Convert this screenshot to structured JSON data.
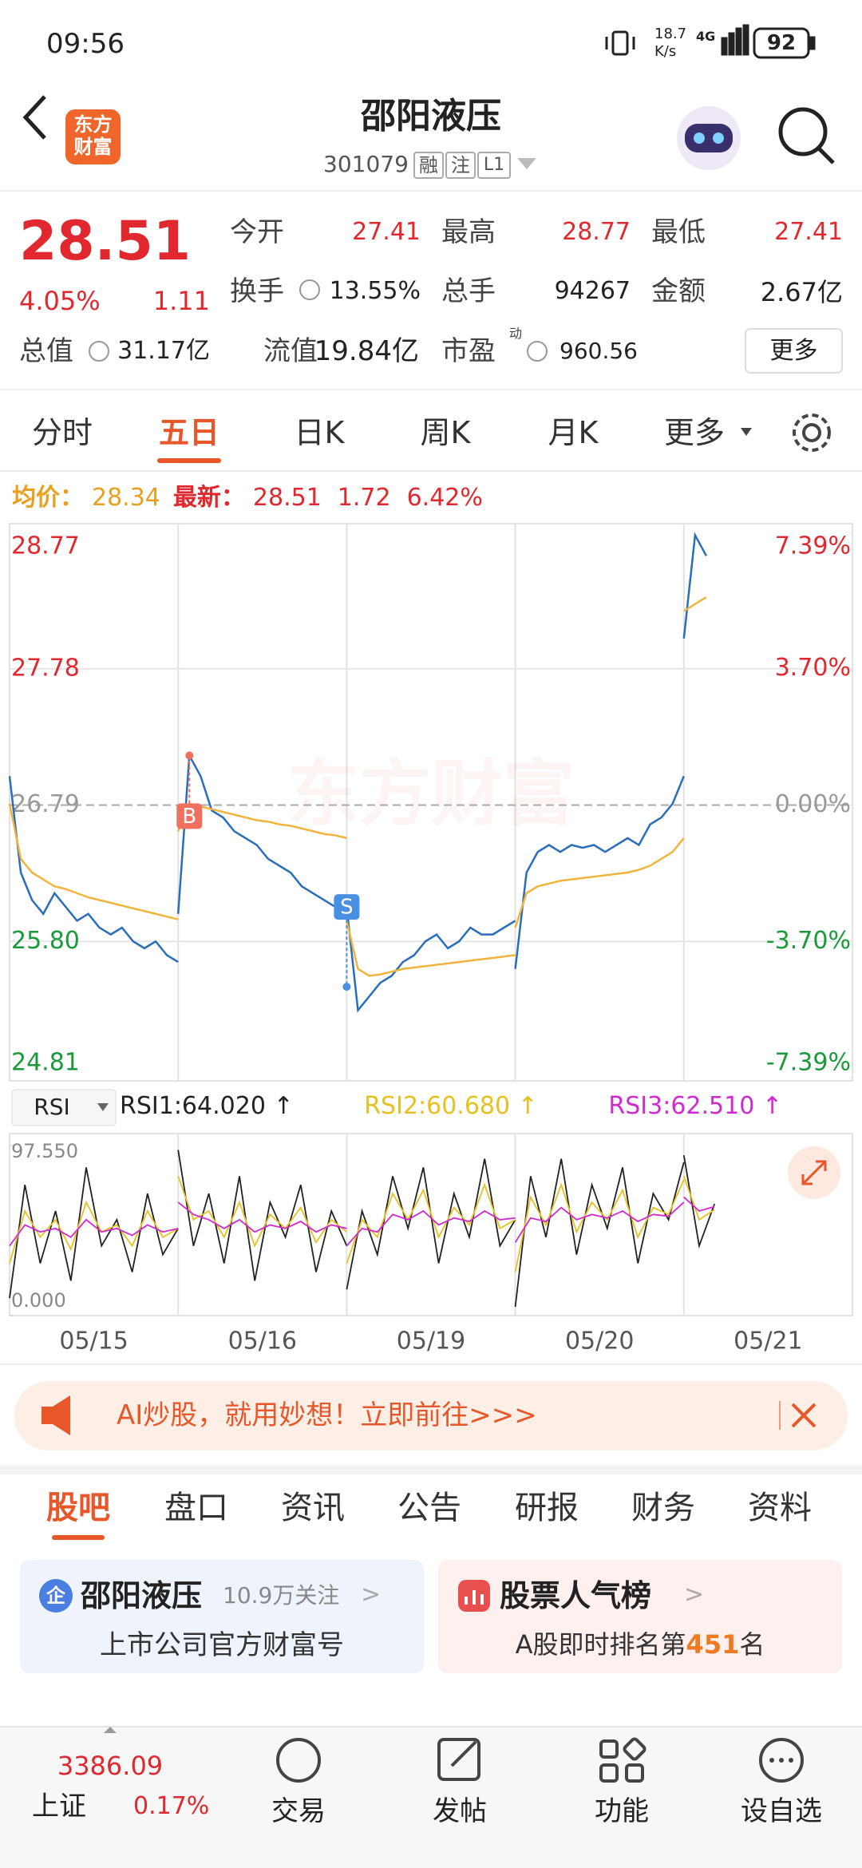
{
  "status_bar": {
    "time": "09:56",
    "speed": "18.7",
    "speed_unit": "K/s",
    "network": "4G",
    "battery": "92"
  },
  "header": {
    "logo": [
      "东方",
      "财富"
    ],
    "title": "邵阳液压",
    "code": "301079",
    "tags": [
      "融",
      "注",
      "L1"
    ]
  },
  "quote": {
    "price": "28.51",
    "change_pct": "4.05%",
    "change": "1.11",
    "market_cap_label": "总值",
    "market_cap": "31.17亿",
    "stats": [
      [
        "今开",
        "27.41"
      ],
      [
        "最高",
        "28.77"
      ],
      [
        "最低",
        "27.41"
      ],
      [
        "换手",
        "13.55%"
      ],
      [
        "总手",
        "94267"
      ],
      [
        "金额",
        "2.67亿"
      ],
      [
        "流值",
        "19.84亿"
      ],
      [
        "市盈",
        "960.56"
      ]
    ],
    "pe_sup": "动",
    "more": "更多"
  },
  "tabs": [
    "分时",
    "五日",
    "日K",
    "周K",
    "月K",
    "更多"
  ],
  "info": {
    "avg_label": "均价：",
    "avg": "28.34",
    "last_label": "最新：",
    "last": "28.51",
    "change": "1.72",
    "change_pct": "6.42%"
  },
  "chart_data": [
    {
      "type": "line",
      "watermark": "东方财富",
      "categories": [
        "05/15",
        "05/16",
        "05/19",
        "05/20",
        "05/21"
      ],
      "ylim": [
        24.81,
        28.77
      ],
      "yticks": [
        28.77,
        27.78,
        26.79,
        {
          "value": 25.8,
          "label": "25.80"
        },
        24.81
      ],
      "y2lim": [
        -7.39,
        7.39
      ],
      "y2ticks": [
        {
          "value": 7.39,
          "label": "7.39%"
        },
        {
          "value": 3.7,
          "label": "3.70%"
        },
        {
          "value": 0,
          "label": "0.00%"
        },
        {
          "value": -3.7,
          "label": "-3.70%"
        },
        {
          "value": -7.39,
          "label": "-7.39%"
        }
      ],
      "up_color": "#e0282e",
      "down_color": "#1a9a3a",
      "flat_color": "#999999",
      "series": [
        {
          "color": "#2a6ebb",
          "values": [
            [
              27.0,
              26.3,
              26.1,
              26.0,
              26.15,
              26.05,
              25.95,
              26.0,
              25.9,
              25.85,
              25.9,
              25.8,
              25.75,
              25.8,
              25.7,
              25.65
            ],
            [
              26.0,
              27.15,
              27.0,
              26.75,
              26.7,
              26.6,
              26.55,
              26.5,
              26.4,
              26.35,
              26.3,
              26.2,
              26.15,
              26.1,
              26.05,
              26.05
            ],
            [
              26.05,
              25.3,
              25.4,
              25.5,
              25.55,
              25.65,
              25.7,
              25.8,
              25.85,
              25.75,
              25.8,
              25.9,
              25.85,
              25.85,
              25.9,
              25.95
            ],
            [
              25.6,
              26.3,
              26.45,
              26.5,
              26.45,
              26.5,
              26.48,
              26.5,
              26.45,
              26.5,
              26.55,
              26.5,
              26.65,
              26.7,
              26.8,
              27.0
            ],
            [
              28.0,
              28.75,
              28.6
            ]
          ]
        },
        {
          "color": "#f0b43c",
          "values": [
            [
              26.8,
              26.4,
              26.3,
              26.25,
              26.2,
              26.18,
              26.15,
              26.12,
              26.1,
              26.08,
              26.06,
              26.04,
              26.02,
              26.0,
              25.98,
              25.96
            ],
            [
              26.6,
              26.8,
              26.78,
              26.76,
              26.74,
              26.72,
              26.7,
              26.68,
              26.67,
              26.65,
              26.64,
              26.62,
              26.6,
              26.58,
              26.57,
              26.55
            ],
            [
              25.95,
              25.6,
              25.55,
              25.56,
              25.58,
              25.6,
              25.61,
              25.62,
              25.63,
              25.64,
              25.65,
              25.66,
              25.67,
              25.68,
              25.69,
              25.7
            ],
            [
              25.9,
              26.15,
              26.2,
              26.22,
              26.24,
              26.25,
              26.26,
              26.27,
              26.28,
              26.29,
              26.3,
              26.32,
              26.35,
              26.4,
              26.45,
              26.55
            ],
            [
              28.2,
              28.25,
              28.3
            ]
          ]
        }
      ],
      "markers": [
        {
          "label": "B",
          "color": "#f07060"
        },
        {
          "label": "S",
          "color": "#4a90e2"
        }
      ]
    },
    {
      "type": "line",
      "selector": "RSI",
      "arrow": "↑",
      "ylim": [
        0,
        97.55
      ],
      "yticks": [
        {
          "value": 97.55,
          "label": "97.550"
        },
        {
          "value": 0,
          "label": "0.000"
        }
      ],
      "series": [
        {
          "name": "RSI1:64.020",
          "color": "#222222",
          "values": [
            [
              10,
              75,
              30,
              60,
              20,
              85,
              40,
              55,
              25,
              70,
              35,
              50
            ],
            [
              95,
              40,
              70,
              30,
              80,
              20,
              65,
              45,
              75,
              25,
              60,
              40
            ],
            [
              15,
              60,
              35,
              80,
              50,
              85,
              30,
              70,
              45,
              90,
              40,
              55
            ],
            [
              5,
              80,
              45,
              90,
              35,
              75,
              50,
              85,
              30,
              70,
              55,
              88
            ],
            [
              92,
              40,
              64.02
            ]
          ]
        },
        {
          "name": "RSI2:60.680",
          "color": "#e8c020",
          "values": [
            [
              30,
              60,
              45,
              55,
              38,
              65,
              48,
              52,
              40,
              60,
              45,
              50
            ],
            [
              80,
              55,
              60,
              45,
              65,
              40,
              58,
              50,
              62,
              42,
              55,
              48
            ],
            [
              30,
              55,
              45,
              70,
              55,
              72,
              45,
              62,
              52,
              75,
              50,
              55
            ],
            [
              25,
              68,
              52,
              75,
              48,
              65,
              55,
              72,
              45,
              62,
              58,
              78
            ],
            [
              80,
              55,
              60.68
            ]
          ]
        },
        {
          "name": "RSI3:62.510",
          "color": "#d02ad0",
          "values": [
            [
              40,
              52,
              48,
              50,
              45,
              55,
              48,
              50,
              46,
              52,
              48,
              50
            ],
            [
              65,
              58,
              55,
              50,
              55,
              48,
              52,
              50,
              54,
              48,
              52,
              50
            ],
            [
              40,
              50,
              48,
              58,
              55,
              60,
              52,
              56,
              54,
              60,
              55,
              56
            ],
            [
              42,
              56,
              54,
              62,
              55,
              58,
              56,
              60,
              54,
              58,
              57,
              65
            ],
            [
              68,
              60,
              62.51
            ]
          ]
        }
      ]
    }
  ],
  "banner": "AI炒股，就用妙想！立即前往>>>",
  "sub_tabs": [
    "股吧",
    "盘口",
    "资讯",
    "公告",
    "研报",
    "财务",
    "资料"
  ],
  "cards": [
    {
      "icon": "企",
      "title": "邵阳液压",
      "followers": "10.9万关注",
      "subtitle": "上市公司官方财富号"
    },
    {
      "title": "股票人气榜",
      "subtitle_pre": "A股即时排名第",
      "rank": "451",
      "subtitle_post": "名"
    }
  ],
  "bottom_nav": {
    "index_name": "上证",
    "index_value": "3386.09",
    "index_change": "0.17%",
    "items": [
      "交易",
      "发帖",
      "功能",
      "设自选"
    ]
  }
}
